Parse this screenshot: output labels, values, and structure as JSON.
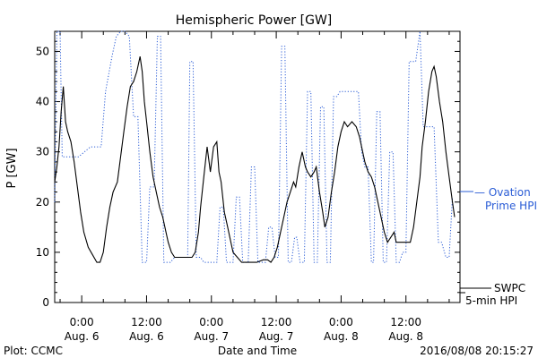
{
  "chart_data": {
    "type": "line",
    "title": "Hemispheric Power [GW]",
    "ylabel": "P [GW]",
    "xlabel": "Date and Time",
    "ylim": [
      0,
      54
    ],
    "xlim": [
      -2.5,
      35
    ],
    "y_ticks": [
      0,
      10,
      20,
      30,
      40,
      50
    ],
    "x_ticks": [
      {
        "x": 0,
        "time": "0:00",
        "date": "Aug. 6"
      },
      {
        "x": 6,
        "time": "12:00",
        "date": "Aug. 6"
      },
      {
        "x": 12,
        "time": "0:00",
        "date": "Aug. 7"
      },
      {
        "x": 18,
        "time": "12:00",
        "date": "Aug. 7"
      },
      {
        "x": 24,
        "time": "0:00",
        "date": "Aug. 8"
      },
      {
        "x": 30,
        "time": "12:00",
        "date": "Aug. 8"
      }
    ],
    "x_unit": "hours since 2016-08-06 00:00 UT",
    "series": [
      {
        "name": "SWPC 5-min HPI",
        "color": "#000000",
        "style": "solid",
        "points": [
          [
            -2.5,
            24
          ],
          [
            -2.3,
            27
          ],
          [
            -2.1,
            31
          ],
          [
            -1.9,
            38
          ],
          [
            -1.7,
            43
          ],
          [
            -1.5,
            36
          ],
          [
            -1.3,
            34
          ],
          [
            -1.0,
            32
          ],
          [
            -0.7,
            28
          ],
          [
            -0.4,
            23
          ],
          [
            -0.1,
            18
          ],
          [
            0.2,
            14
          ],
          [
            0.6,
            11
          ],
          [
            1.0,
            9.5
          ],
          [
            1.4,
            8
          ],
          [
            1.7,
            8
          ],
          [
            2.0,
            10
          ],
          [
            2.3,
            15
          ],
          [
            2.6,
            19
          ],
          [
            2.9,
            22
          ],
          [
            3.3,
            24
          ],
          [
            3.6,
            29
          ],
          [
            3.9,
            34
          ],
          [
            4.2,
            39
          ],
          [
            4.5,
            43
          ],
          [
            4.8,
            44
          ],
          [
            5.1,
            46
          ],
          [
            5.4,
            49
          ],
          [
            5.6,
            46
          ],
          [
            5.8,
            40
          ],
          [
            6.0,
            36
          ],
          [
            6.3,
            30
          ],
          [
            6.6,
            25
          ],
          [
            6.9,
            22
          ],
          [
            7.2,
            19
          ],
          [
            7.5,
            17
          ],
          [
            7.8,
            14
          ],
          [
            8.0,
            12
          ],
          [
            8.3,
            10
          ],
          [
            8.6,
            9
          ],
          [
            9.2,
            9
          ],
          [
            9.8,
            9
          ],
          [
            10.2,
            9
          ],
          [
            10.5,
            10
          ],
          [
            10.8,
            14
          ],
          [
            11.0,
            19
          ],
          [
            11.3,
            25
          ],
          [
            11.6,
            31
          ],
          [
            11.9,
            26
          ],
          [
            12.2,
            31
          ],
          [
            12.5,
            32
          ],
          [
            12.7,
            26
          ],
          [
            12.9,
            24
          ],
          [
            13.2,
            18
          ],
          [
            13.5,
            15
          ],
          [
            13.7,
            13
          ],
          [
            14.0,
            10
          ],
          [
            14.4,
            9
          ],
          [
            14.8,
            8
          ],
          [
            15.5,
            8
          ],
          [
            16.2,
            8
          ],
          [
            16.8,
            8.5
          ],
          [
            17.2,
            8.5
          ],
          [
            17.5,
            8
          ],
          [
            17.8,
            9
          ],
          [
            18.1,
            11
          ],
          [
            18.4,
            14
          ],
          [
            18.7,
            17
          ],
          [
            19.0,
            20
          ],
          [
            19.3,
            22
          ],
          [
            19.6,
            24
          ],
          [
            19.8,
            23
          ],
          [
            20.1,
            27
          ],
          [
            20.4,
            30
          ],
          [
            20.7,
            27
          ],
          [
            20.9,
            26
          ],
          [
            21.2,
            25
          ],
          [
            21.5,
            26
          ],
          [
            21.7,
            27
          ],
          [
            22.0,
            22
          ],
          [
            22.3,
            18
          ],
          [
            22.5,
            15
          ],
          [
            22.8,
            17
          ],
          [
            23.1,
            22
          ],
          [
            23.4,
            26
          ],
          [
            23.7,
            31
          ],
          [
            24.0,
            34
          ],
          [
            24.3,
            36
          ],
          [
            24.6,
            35
          ],
          [
            25.0,
            36
          ],
          [
            25.4,
            35
          ],
          [
            25.7,
            33
          ],
          [
            26.0,
            30
          ],
          [
            26.2,
            28
          ],
          [
            26.5,
            26
          ],
          [
            26.8,
            25
          ],
          [
            27.1,
            23
          ],
          [
            27.4,
            20
          ],
          [
            27.7,
            17
          ],
          [
            28.0,
            14
          ],
          [
            28.3,
            12
          ],
          [
            28.6,
            13
          ],
          [
            28.9,
            14
          ],
          [
            29.1,
            12
          ],
          [
            29.5,
            12
          ],
          [
            30.0,
            12
          ],
          [
            30.4,
            12
          ],
          [
            30.7,
            15
          ],
          [
            31.0,
            20
          ],
          [
            31.3,
            25
          ],
          [
            31.5,
            31
          ],
          [
            31.8,
            36
          ],
          [
            32.1,
            42
          ],
          [
            32.4,
            46
          ],
          [
            32.6,
            47
          ],
          [
            32.8,
            45
          ],
          [
            33.1,
            40
          ],
          [
            33.4,
            36
          ],
          [
            33.7,
            30
          ],
          [
            34.0,
            25
          ],
          [
            34.3,
            20
          ],
          [
            34.5,
            17
          ]
        ]
      },
      {
        "name": "Ovation Prime HPI",
        "color": "#2a5cd6",
        "style": "dotted",
        "points": [
          [
            -2.5,
            20
          ],
          [
            -2.3,
            54
          ],
          [
            -2.0,
            54
          ],
          [
            -1.8,
            29
          ],
          [
            -1.2,
            29
          ],
          [
            -0.7,
            29
          ],
          [
            -0.5,
            29
          ],
          [
            -0.3,
            29
          ],
          [
            0.8,
            31
          ],
          [
            1.8,
            31
          ],
          [
            2.2,
            42
          ],
          [
            2.8,
            49
          ],
          [
            3.2,
            53
          ],
          [
            3.6,
            54
          ],
          [
            4.0,
            54
          ],
          [
            4.4,
            53
          ],
          [
            4.8,
            37
          ],
          [
            5.2,
            37
          ],
          [
            5.6,
            8
          ],
          [
            6.0,
            8
          ],
          [
            6.3,
            23
          ],
          [
            6.7,
            23
          ],
          [
            7.0,
            53
          ],
          [
            7.3,
            53
          ],
          [
            7.6,
            8
          ],
          [
            8.2,
            8
          ],
          [
            8.6,
            9
          ],
          [
            9.4,
            9
          ],
          [
            9.8,
            9
          ],
          [
            10.0,
            48
          ],
          [
            10.3,
            48
          ],
          [
            10.6,
            9
          ],
          [
            11.0,
            9
          ],
          [
            11.3,
            8
          ],
          [
            12.5,
            8
          ],
          [
            12.8,
            19
          ],
          [
            13.1,
            19
          ],
          [
            13.4,
            8
          ],
          [
            14.0,
            8
          ],
          [
            14.3,
            21
          ],
          [
            14.6,
            21
          ],
          [
            14.9,
            8
          ],
          [
            15.4,
            8
          ],
          [
            15.7,
            27
          ],
          [
            16.0,
            27
          ],
          [
            16.3,
            8
          ],
          [
            17.0,
            8
          ],
          [
            17.3,
            15
          ],
          [
            17.6,
            15
          ],
          [
            17.9,
            9
          ],
          [
            18.2,
            9
          ],
          [
            18.5,
            51
          ],
          [
            18.8,
            51
          ],
          [
            19.1,
            8
          ],
          [
            19.4,
            8
          ],
          [
            19.7,
            13
          ],
          [
            19.9,
            13
          ],
          [
            20.2,
            8
          ],
          [
            20.6,
            8
          ],
          [
            20.9,
            42
          ],
          [
            21.2,
            42
          ],
          [
            21.5,
            8
          ],
          [
            21.8,
            8
          ],
          [
            22.1,
            39
          ],
          [
            22.4,
            39
          ],
          [
            22.7,
            8
          ],
          [
            23.0,
            8
          ],
          [
            23.3,
            41
          ],
          [
            23.6,
            41
          ],
          [
            23.9,
            42
          ],
          [
            25.0,
            42
          ],
          [
            25.6,
            42
          ],
          [
            25.9,
            30
          ],
          [
            26.2,
            27
          ],
          [
            26.5,
            27
          ],
          [
            26.8,
            8
          ],
          [
            27.0,
            8
          ],
          [
            27.3,
            38
          ],
          [
            27.6,
            38
          ],
          [
            27.9,
            8
          ],
          [
            28.2,
            8
          ],
          [
            28.5,
            30
          ],
          [
            28.8,
            30
          ],
          [
            29.1,
            8
          ],
          [
            29.4,
            8
          ],
          [
            29.7,
            10
          ],
          [
            30.0,
            10
          ],
          [
            30.3,
            48
          ],
          [
            30.6,
            48
          ],
          [
            30.9,
            48
          ],
          [
            31.3,
            54
          ],
          [
            31.6,
            35
          ],
          [
            32.0,
            35
          ],
          [
            32.6,
            35
          ],
          [
            33.0,
            12
          ],
          [
            33.3,
            12
          ],
          [
            33.7,
            9
          ],
          [
            34.0,
            9
          ],
          [
            34.3,
            21
          ]
        ]
      }
    ],
    "legend": {
      "placement": "right",
      "entries": [
        {
          "label_line1": "SWPC",
          "label_line2": "5-min HPI",
          "color": "#000000",
          "style": "solid"
        },
        {
          "label_line1": "— Ovation",
          "label_line2": "Prime HPI",
          "color": "#2a5cd6",
          "style": "dotted"
        }
      ]
    }
  },
  "footer": {
    "left": "Plot: CCMC",
    "center": "Date and Time",
    "right": "2016/08/08 20:15:27"
  }
}
